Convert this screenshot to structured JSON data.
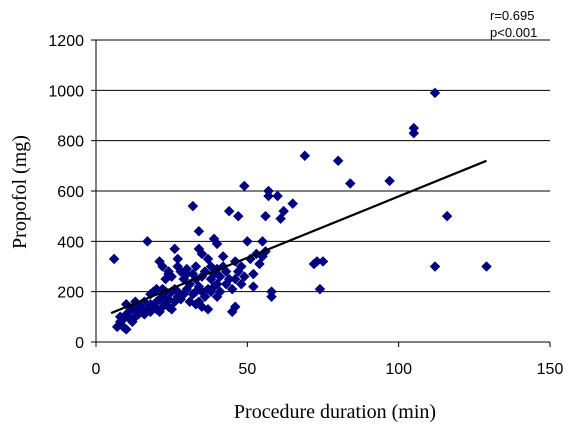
{
  "chart_data": {
    "type": "scatter",
    "title": "",
    "xlabel": "Procedure duration (min)",
    "ylabel": "Propofol (mg)",
    "xlim": [
      0,
      150
    ],
    "ylim": [
      0,
      1200
    ],
    "x_ticks": [
      0,
      50,
      100,
      150
    ],
    "y_ticks": [
      0,
      200,
      400,
      600,
      800,
      1000,
      1200
    ],
    "grid": "horizontal",
    "marker": "diamond",
    "marker_color": "#000080",
    "trendline_color": "#000000",
    "annotations": [
      "r=0.695",
      "p<0.001"
    ],
    "series": [
      {
        "points": [
          [
            6,
            330
          ],
          [
            7,
            60
          ],
          [
            8,
            80
          ],
          [
            8,
            100
          ],
          [
            9,
            60
          ],
          [
            9,
            90
          ],
          [
            10,
            50
          ],
          [
            10,
            110
          ],
          [
            10,
            150
          ],
          [
            11,
            120
          ],
          [
            11,
            95
          ],
          [
            12,
            130
          ],
          [
            12,
            80
          ],
          [
            13,
            100
          ],
          [
            13,
            140
          ],
          [
            13,
            160
          ],
          [
            14,
            120
          ],
          [
            14,
            110
          ],
          [
            15,
            150
          ],
          [
            15,
            130
          ],
          [
            16,
            110
          ],
          [
            16,
            160
          ],
          [
            17,
            130
          ],
          [
            17,
            400
          ],
          [
            18,
            120
          ],
          [
            18,
            150
          ],
          [
            18,
            190
          ],
          [
            19,
            200
          ],
          [
            19,
            140
          ],
          [
            20,
            130
          ],
          [
            20,
            160
          ],
          [
            20,
            210
          ],
          [
            21,
            120
          ],
          [
            21,
            170
          ],
          [
            21,
            320
          ],
          [
            22,
            140
          ],
          [
            22,
            180
          ],
          [
            22,
            210
          ],
          [
            22,
            300
          ],
          [
            23,
            150
          ],
          [
            23,
            200
          ],
          [
            23,
            250
          ],
          [
            24,
            140
          ],
          [
            24,
            170
          ],
          [
            24,
            270
          ],
          [
            24,
            280
          ],
          [
            25,
            130
          ],
          [
            25,
            200
          ],
          [
            25,
            260
          ],
          [
            26,
            160
          ],
          [
            26,
            210
          ],
          [
            26,
            370
          ],
          [
            27,
            180
          ],
          [
            27,
            200
          ],
          [
            27,
            300
          ],
          [
            27,
            330
          ],
          [
            28,
            170
          ],
          [
            28,
            280
          ],
          [
            29,
            190
          ],
          [
            29,
            250
          ],
          [
            30,
            210
          ],
          [
            30,
            270
          ],
          [
            30,
            290
          ],
          [
            31,
            160
          ],
          [
            31,
            230
          ],
          [
            32,
            190
          ],
          [
            32,
            270
          ],
          [
            32,
            540
          ],
          [
            33,
            150
          ],
          [
            33,
            200
          ],
          [
            33,
            250
          ],
          [
            33,
            300
          ],
          [
            34,
            160
          ],
          [
            34,
            220
          ],
          [
            34,
            370
          ],
          [
            34,
            440
          ],
          [
            35,
            140
          ],
          [
            35,
            200
          ],
          [
            35,
            260
          ],
          [
            35,
            350
          ],
          [
            36,
            180
          ],
          [
            36,
            280
          ],
          [
            37,
            130
          ],
          [
            37,
            210
          ],
          [
            37,
            330
          ],
          [
            38,
            200
          ],
          [
            38,
            250
          ],
          [
            38,
            300
          ],
          [
            39,
            220
          ],
          [
            39,
            270
          ],
          [
            39,
            410
          ],
          [
            40,
            180
          ],
          [
            40,
            230
          ],
          [
            40,
            290
          ],
          [
            40,
            390
          ],
          [
            41,
            200
          ],
          [
            41,
            260
          ],
          [
            42,
            300
          ],
          [
            42,
            340
          ],
          [
            43,
            230
          ],
          [
            43,
            280
          ],
          [
            44,
            520
          ],
          [
            44,
            250
          ],
          [
            45,
            120
          ],
          [
            45,
            210
          ],
          [
            46,
            140
          ],
          [
            46,
            250
          ],
          [
            46,
            320
          ],
          [
            47,
            500
          ],
          [
            47,
            280
          ],
          [
            48,
            230
          ],
          [
            48,
            300
          ],
          [
            49,
            620
          ],
          [
            49,
            260
          ],
          [
            50,
            400
          ],
          [
            51,
            330
          ],
          [
            52,
            270
          ],
          [
            52,
            220
          ],
          [
            53,
            350
          ],
          [
            54,
            310
          ],
          [
            55,
            340
          ],
          [
            55,
            400
          ],
          [
            56,
            500
          ],
          [
            56,
            360
          ],
          [
            57,
            600
          ],
          [
            57,
            580
          ],
          [
            58,
            180
          ],
          [
            58,
            200
          ],
          [
            60,
            580
          ],
          [
            61,
            490
          ],
          [
            62,
            520
          ],
          [
            65,
            550
          ],
          [
            69,
            740
          ],
          [
            72,
            310
          ],
          [
            73,
            320
          ],
          [
            74,
            210
          ],
          [
            75,
            320
          ],
          [
            80,
            720
          ],
          [
            84,
            630
          ],
          [
            97,
            640
          ],
          [
            105,
            850
          ],
          [
            105,
            830
          ],
          [
            112,
            990
          ],
          [
            112,
            300
          ],
          [
            116,
            500
          ],
          [
            129,
            300
          ]
        ]
      }
    ],
    "trendline": {
      "x": [
        5,
        129
      ],
      "y": [
        115,
        720
      ]
    }
  }
}
